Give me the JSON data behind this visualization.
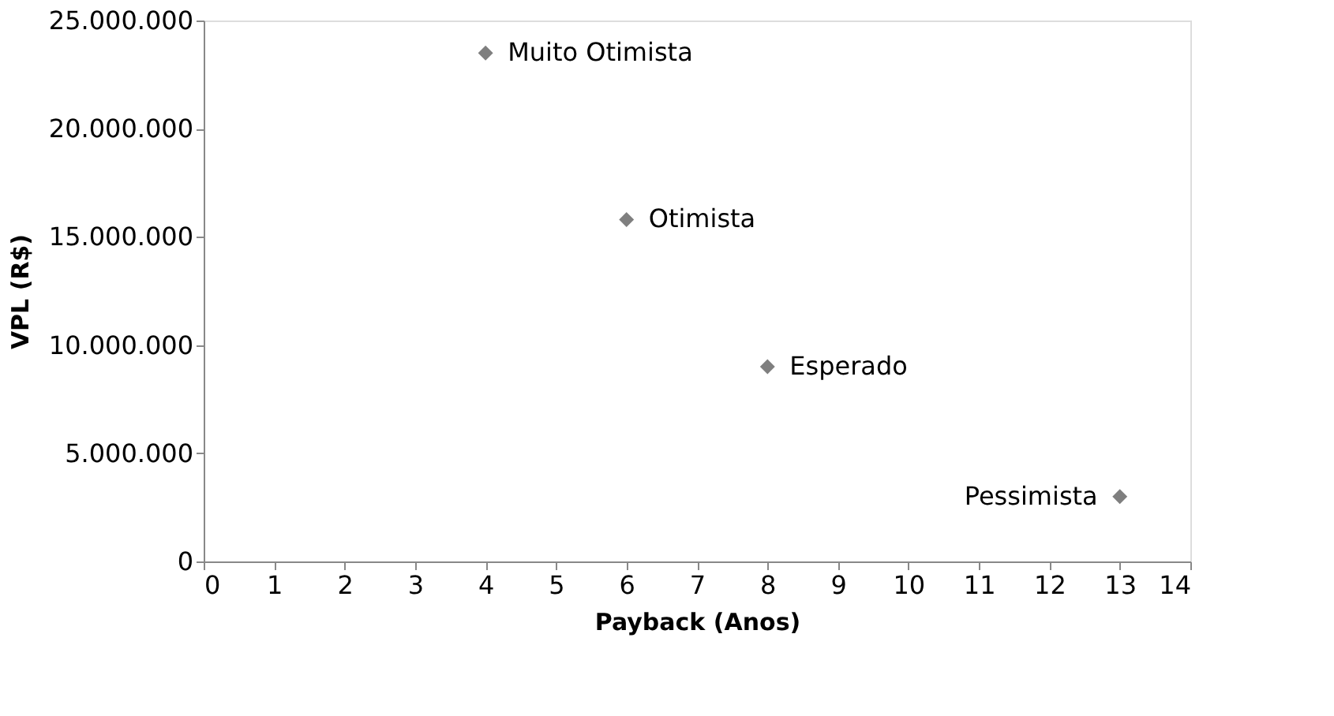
{
  "chart_data": {
    "type": "scatter",
    "xlabel": "Payback (Anos)",
    "ylabel": "VPL (R$)",
    "x": [
      4,
      6,
      8,
      13
    ],
    "series": [
      {
        "color": "#7f7f7f",
        "values": [
          23500000,
          15800000,
          9000000,
          3000000
        ]
      }
    ],
    "xlim": [
      0,
      14
    ],
    "xticks": [
      0,
      1,
      2,
      3,
      4,
      5,
      6,
      7,
      8,
      9,
      10,
      11,
      12,
      13,
      14
    ],
    "ylim": [
      0,
      25000000
    ],
    "yticks": [
      {
        "value": 0,
        "label": "0"
      },
      {
        "value": 5000000,
        "label": "5.000.000"
      },
      {
        "value": 10000000,
        "label": "10.000.000"
      },
      {
        "value": 15000000,
        "label": "15.000.000"
      },
      {
        "value": 20000000,
        "label": "20.000.000"
      },
      {
        "value": 25000000,
        "label": "25.000.000"
      }
    ],
    "annotations": [
      {
        "text": "Muito Otimista",
        "x": 4,
        "y": 23500000
      },
      {
        "text": "Otimista",
        "x": 6,
        "y": 15800000
      },
      {
        "text": "Esperado",
        "x": 8,
        "y": 9000000
      },
      {
        "text": "Pessimista",
        "x": 13,
        "y": 3000000
      }
    ],
    "marker": "diamond",
    "grid": false,
    "legend": false
  }
}
